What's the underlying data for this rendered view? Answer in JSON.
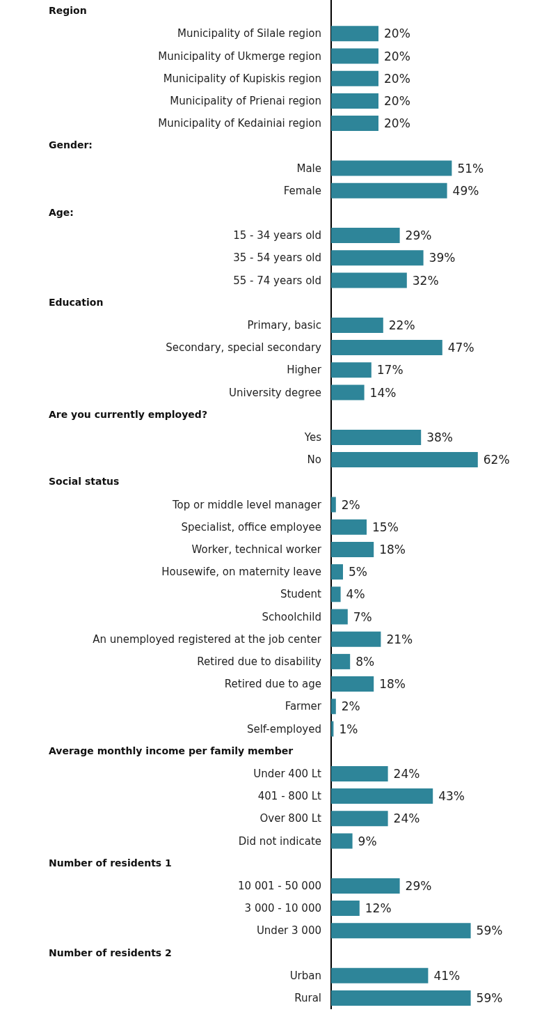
{
  "chart_data": {
    "type": "bar",
    "orientation": "horizontal",
    "color": "#2e8599",
    "annotations": [
      "Region",
      "Gender:",
      "Age:",
      "Education",
      "Are you currently employed?",
      "Social status",
      "Average monthly income per family member",
      "Number of residents 1",
      "Number of residents 2"
    ],
    "categories": [
      null,
      "Municipality of Silale region",
      "Municipality of Ukmerge region",
      "Municipality of Kupiskis region",
      "Municipality of Prienai region",
      "Municipality of Kedainiai region",
      null,
      "Male",
      "Female",
      null,
      "15 - 34 years old",
      "35 - 54 years old",
      "55 - 74 years old",
      null,
      "Primary, basic",
      "Secondary, special secondary",
      "Higher",
      "University degree",
      null,
      "Yes",
      "No",
      null,
      "Top or middle level manager",
      "Specialist, office employee",
      "Worker, technical worker",
      "Housewife, on maternity leave",
      "Student",
      "Schoolchild",
      "An unemployed registered at the job center",
      "Retired due to disability",
      "Retired due to age",
      "Farmer",
      "Self-employed",
      null,
      "Under 400 Lt",
      "401 - 800 Lt",
      "Over 800 Lt",
      "Did not indicate",
      null,
      "10 001 - 50 000",
      "3 000 - 10 000",
      "Under 3 000",
      null,
      "Urban",
      "Rural"
    ],
    "values": [
      null,
      20,
      20,
      20,
      20,
      20,
      null,
      51,
      49,
      null,
      29,
      39,
      32,
      null,
      22,
      47,
      17,
      14,
      null,
      38,
      62,
      null,
      2,
      15,
      18,
      5,
      4,
      7,
      21,
      8,
      18,
      2,
      1,
      null,
      24,
      43,
      24,
      9,
      null,
      29,
      12,
      59,
      null,
      41,
      59
    ],
    "value_labels": [
      null,
      "20%",
      "20%",
      "20%",
      "20%",
      "20%",
      null,
      "51%",
      "49%",
      null,
      "29%",
      "39%",
      "32%",
      null,
      "22%",
      "47%",
      "17%",
      "14%",
      null,
      "38%",
      "62%",
      null,
      "2%",
      "15%",
      "18%",
      "5%",
      "4%",
      "7%",
      "21%",
      "8%",
      "18%",
      "2%",
      "1%",
      null,
      "24%",
      "43%",
      "24%",
      "9%",
      null,
      "29%",
      "12%",
      "59%",
      null,
      "41%",
      "59%"
    ]
  }
}
